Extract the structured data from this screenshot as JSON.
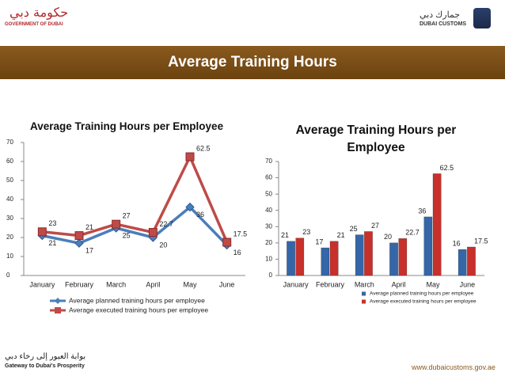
{
  "header": {
    "government_ar": "حكومة دبي",
    "government_en": "GOVERNMENT OF DUBAI",
    "customs_ar": "جمارك دبي",
    "customs_en": "DUBAI CUSTOMS",
    "title": "Average Training Hours"
  },
  "footer": {
    "slogan_ar": "بوابة العبور إلى رخاء دبي",
    "slogan_en": "Gateway to Dubai's Prosperity",
    "url": "www.dubaicustoms.gov.ae"
  },
  "chart_data": [
    {
      "type": "line",
      "title": "Average Training Hours per Employee",
      "categories": [
        "January",
        "February",
        "March",
        "April",
        "May",
        "June"
      ],
      "series": [
        {
          "name": "Average planned training hours per employee",
          "color": "#4a7ebb",
          "values": [
            21,
            17,
            25,
            20,
            36,
            16
          ]
        },
        {
          "name": "Average executed training hours per employee",
          "color": "#be4b48",
          "values": [
            23,
            21,
            27,
            22.7,
            62.5,
            17.5
          ]
        }
      ],
      "ylim": [
        0,
        70
      ],
      "yticks": [
        0,
        10,
        20,
        30,
        40,
        50,
        60,
        70
      ]
    },
    {
      "type": "bar",
      "title": "Average Training Hours per Employee",
      "categories": [
        "January",
        "February",
        "March",
        "April",
        "May",
        "June"
      ],
      "series": [
        {
          "name": "Average planned training  hours per employee",
          "color": "#3566a8",
          "values": [
            21,
            17,
            25,
            20,
            36,
            16
          ]
        },
        {
          "name": "Average executed training  hours per employee",
          "color": "#c8302c",
          "values": [
            23,
            21,
            27,
            22.7,
            62.5,
            17.5
          ]
        }
      ],
      "ylim": [
        0,
        70
      ],
      "yticks": [
        0,
        10,
        20,
        30,
        40,
        50,
        60,
        70
      ]
    }
  ]
}
